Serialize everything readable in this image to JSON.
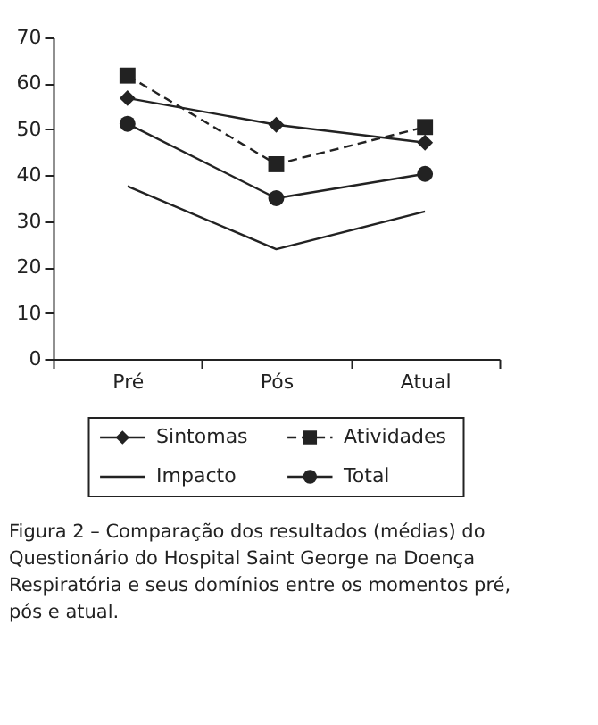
{
  "chart_data": {
    "type": "line",
    "categories": [
      "Pré",
      "Pós",
      "Atual"
    ],
    "series": [
      {
        "name": "Sintomas",
        "color": "#222222",
        "marker": "diamond",
        "line_style": "solid",
        "values": [
          56.8,
          51.0,
          47.1
        ]
      },
      {
        "name": "Atividades",
        "color": "#222222",
        "marker": "square",
        "line_style": "dashed",
        "values": [
          61.7,
          42.4,
          50.5
        ]
      },
      {
        "name": "Impacto",
        "color": "#222222",
        "marker": "none",
        "line_style": "solid",
        "values": [
          37.6,
          23.9,
          32.1
        ]
      },
      {
        "name": "Total",
        "color": "#222222",
        "marker": "circle",
        "line_style": "solid",
        "values": [
          51.2,
          35.0,
          40.3
        ]
      }
    ],
    "ylim": [
      0,
      70
    ],
    "yticks": [
      0,
      10,
      20,
      30,
      40,
      50,
      60,
      70
    ],
    "grid": false,
    "legend": "bottom",
    "annotations": [
      "Figura 2 – Comparação dos resultados (médias) do Questionário do Hospital Saint George na Doença Respiratória e seus domínios entre os momentos pré, pós e atual."
    ]
  }
}
